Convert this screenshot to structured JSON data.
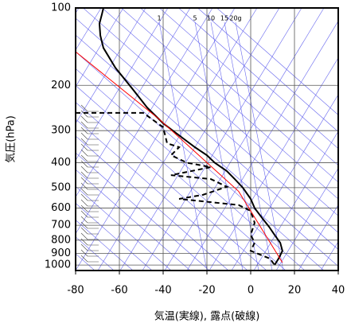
{
  "chart_data": {
    "type": "skewt",
    "y_label": "気圧(hPa)",
    "x_label": "気温(実線), 露点(破線)",
    "xlim": [
      -80,
      40
    ],
    "xticks": [
      -80,
      -60,
      -40,
      -20,
      0,
      20,
      40
    ],
    "ylim": [
      1050,
      100
    ],
    "yticks": [
      100,
      200,
      300,
      400,
      500,
      600,
      700,
      800,
      900,
      1000
    ],
    "log_y": true,
    "grid": true,
    "mixing_ratio_labels": [
      "1",
      "5",
      "10",
      "15",
      "20g"
    ],
    "series": [
      {
        "style": "solid",
        "color": "#000000",
        "pressure": [
          100,
          106,
          115,
          128,
          143,
          171,
          204,
          244,
          281,
          313,
          348,
          374,
          400,
          431,
          463,
          500,
          553,
          600,
          661,
          710,
          763,
          819,
          880,
          945,
          1000
        ],
        "values": [
          -67.3,
          -68,
          -69.1,
          -68.7,
          -67.3,
          -61.8,
          -54.5,
          -47.3,
          -40,
          -32.7,
          -25.5,
          -20,
          -16.4,
          -10.9,
          -7.3,
          -3.6,
          0,
          1.8,
          5.5,
          8.4,
          10.9,
          13.5,
          14.5,
          12.7,
          10.9
        ]
      },
      {
        "style": "dashed",
        "color": "#000000",
        "pressure": [
          256,
          256,
          291,
          336,
          348,
          374,
          400,
          416,
          447,
          463,
          496,
          533,
          553,
          584,
          616,
          685,
          763,
          819,
          880,
          945,
          1000
        ],
        "values": [
          -80,
          -49.1,
          -40,
          -38.2,
          -32.7,
          -36.4,
          -29.1,
          -18.2,
          -36.4,
          -18.2,
          -10.9,
          -21.8,
          -32.7,
          -5.5,
          0,
          1.8,
          0,
          1.8,
          0,
          8.9,
          10.9
        ]
      },
      {
        "style": "solid",
        "color": "#ff0000",
        "pressure": [
          148,
          271,
          517,
          978
        ],
        "values": [
          -80,
          -41.8,
          -5.5,
          14.5
        ]
      }
    ]
  }
}
